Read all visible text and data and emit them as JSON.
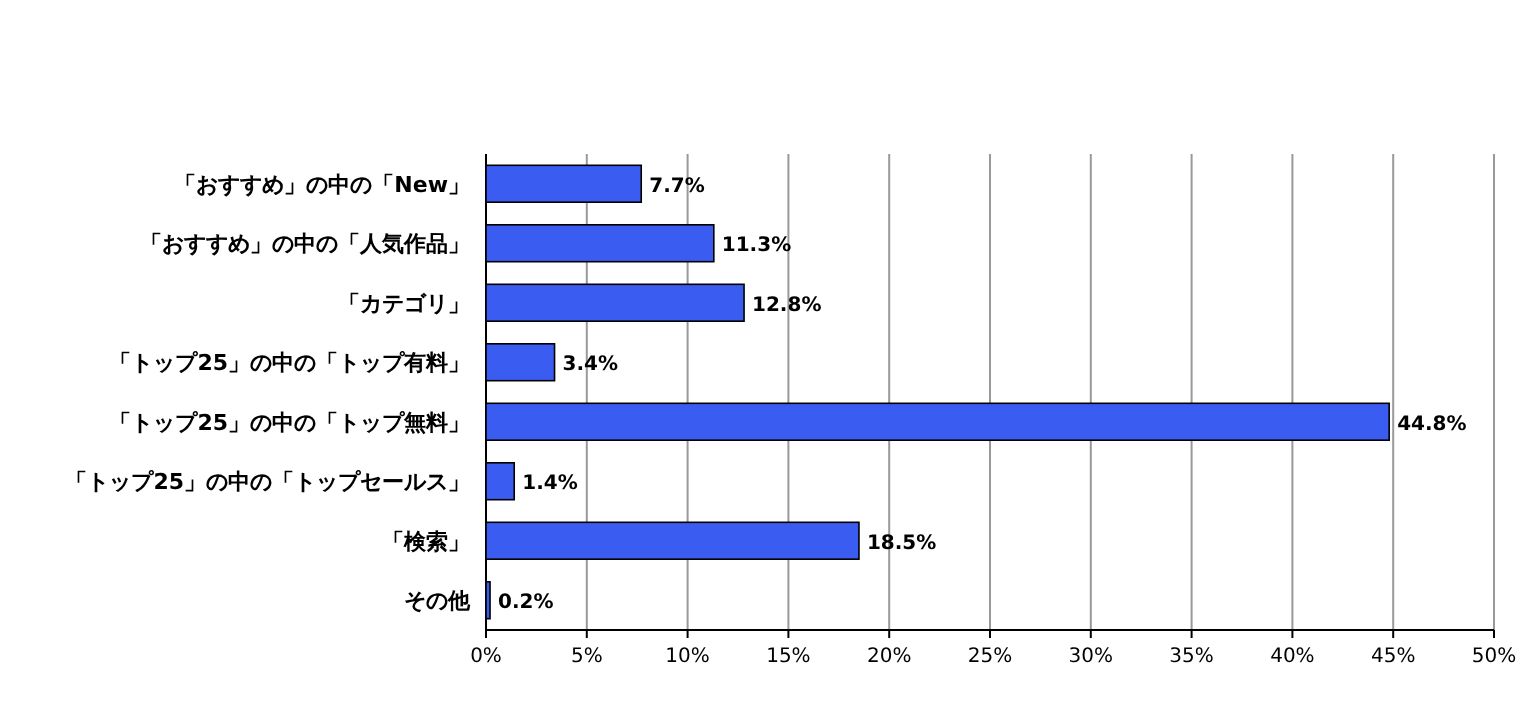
{
  "chart_data": {
    "type": "bar",
    "orientation": "horizontal",
    "categories": [
      "「おすすめ」の中の「New」",
      "「おすすめ」の中の「人気作品」",
      "「カテゴリ」",
      "「トップ25」の中の「トップ有料」",
      "「トップ25」の中の「トップ無料」",
      "「トップ25」の中の「トップセールス」",
      "「検索」",
      "その他"
    ],
    "values": [
      7.7,
      11.3,
      12.8,
      3.4,
      44.8,
      1.4,
      18.5,
      0.2
    ],
    "value_labels": [
      "7.7%",
      "11.3%",
      "12.8%",
      "3.4%",
      "44.8%",
      "1.4%",
      "18.5%",
      "0.2%"
    ],
    "color": "#3a5cf0",
    "xlim": [
      0,
      50
    ],
    "xticks": [
      {
        "value": 0,
        "label": "0%"
      },
      {
        "value": 5,
        "label": "5%"
      },
      {
        "value": 10,
        "label": "10%"
      },
      {
        "value": 15,
        "label": "15%"
      },
      {
        "value": 20,
        "label": "20%"
      },
      {
        "value": 25,
        "label": "25%"
      },
      {
        "value": 30,
        "label": "30%"
      },
      {
        "value": 35,
        "label": "35%"
      },
      {
        "value": 40,
        "label": "40%"
      },
      {
        "value": 45,
        "label": "45%"
      },
      {
        "value": 50,
        "label": "50%"
      }
    ],
    "grid": "x"
  }
}
